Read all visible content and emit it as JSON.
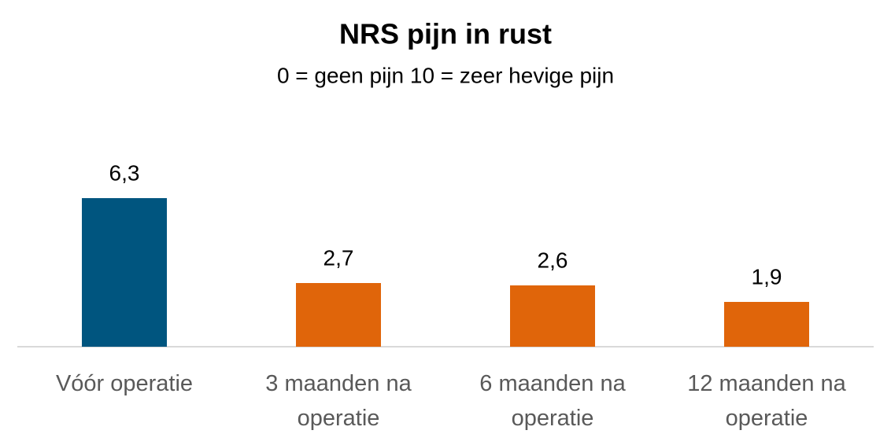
{
  "chart_data": {
    "type": "bar",
    "title": "NRS pijn in rust",
    "subtitle": "0 = geen pijn  10 = zeer hevige pijn",
    "categories": [
      "Vóór operatie",
      "3 maanden na operatie",
      "6 maanden na operatie",
      "12 maanden na operatie"
    ],
    "values": [
      6.3,
      2.7,
      2.6,
      1.9
    ],
    "value_labels": [
      "6,3",
      "2,7",
      "2,6",
      "1,9"
    ],
    "colors": [
      "#00557f",
      "#e0650a",
      "#e0650a",
      "#e0650a"
    ]
  }
}
